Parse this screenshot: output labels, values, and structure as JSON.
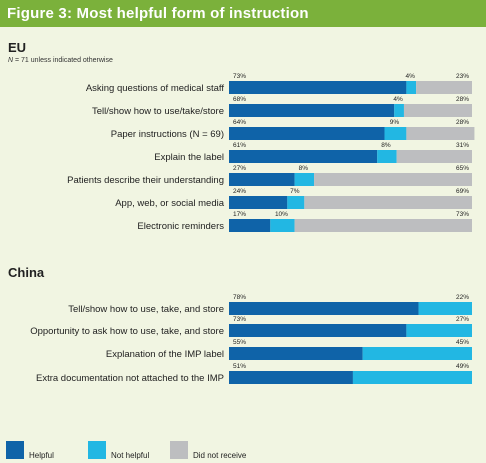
{
  "figure_title": "Figure 3: Most helpful form of instruction",
  "eu_title": "EU",
  "eu_note_n": "N",
  "eu_note_rest": " = 71 unless indicated otherwise",
  "china_title": "China",
  "colors": {
    "helpful": "#0f63a8",
    "not_helpful": "#22b7e3",
    "did_not_receive": "#bdbec0"
  },
  "legend": {
    "helpful": "Helpful",
    "not_helpful": "Not helpful",
    "did_not_receive": "Did not receive"
  },
  "chart_data": [
    {
      "type": "bar",
      "orientation": "horizontal",
      "stacked": true,
      "title": "EU",
      "categories": [
        "Asking questions of medical staff",
        "Tell/show how to use/take/store",
        "Paper instructions (N = 69)",
        "Explain the label",
        "Patients describe their understanding",
        "App, web, or social media",
        "Electronic reminders"
      ],
      "series": [
        {
          "name": "Helpful",
          "values": [
            73,
            68,
            64,
            61,
            27,
            24,
            17
          ]
        },
        {
          "name": "Not helpful",
          "values": [
            4,
            4,
            9,
            8,
            8,
            7,
            10
          ]
        },
        {
          "name": "Did not receive",
          "values": [
            23,
            28,
            28,
            31,
            65,
            69,
            73
          ]
        }
      ],
      "value_labels": {
        "Helpful": [
          "73%",
          "68%",
          "64%",
          "61%",
          "27%",
          "24%",
          "17%"
        ],
        "Not helpful": [
          "4%",
          "4%",
          "9%",
          "8%",
          "8%",
          "7%",
          "10%"
        ],
        "Did not receive": [
          "23%",
          "28%",
          "28%",
          "31%",
          "65%",
          "69%",
          "73%"
        ]
      },
      "xlim": [
        0,
        100
      ]
    },
    {
      "type": "bar",
      "orientation": "horizontal",
      "stacked": true,
      "title": "China",
      "categories": [
        "Tell/show how to  use, take, and store",
        "Opportunity to ask how to use, take, and store",
        "Explanation of the IMP label",
        "Extra documentation not attached to the IMP"
      ],
      "series": [
        {
          "name": "Helpful",
          "values": [
            78,
            73,
            55,
            51
          ]
        },
        {
          "name": "Not helpful",
          "values": [
            22,
            27,
            45,
            49
          ]
        }
      ],
      "value_labels": {
        "Helpful": [
          "78%",
          "73%",
          "55%",
          "51%"
        ],
        "Not helpful": [
          "22%",
          "27%",
          "45%",
          "49%"
        ]
      },
      "xlim": [
        0,
        100
      ]
    }
  ]
}
